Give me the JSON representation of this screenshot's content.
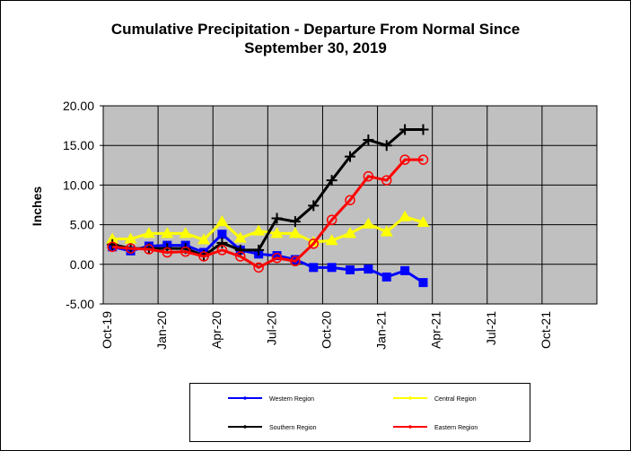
{
  "chart_data": {
    "type": "line",
    "title": "Cumulative Precipitation - Departure From Normal Since",
    "subtitle": "September 30, 2019",
    "ylabel": "Inches",
    "xlabel": "",
    "ylim": [
      -5,
      20
    ],
    "yticks": [
      "20.00",
      "15.00",
      "10.00",
      "5.00",
      "0.00",
      "-5.00"
    ],
    "xticks": [
      "Oct-19",
      "Jan-20",
      "Apr-20",
      "Jul-20",
      "Oct-20",
      "Jan-21",
      "Apr-21",
      "Jul-21",
      "Oct-21"
    ],
    "grid": true,
    "plot_background": "#c0c0c0",
    "legend_position": "bottom",
    "x": [
      "Oct-19",
      "Nov-19",
      "Dec-19",
      "Jan-20",
      "Feb-20",
      "Mar-20",
      "Apr-20",
      "May-20",
      "Jun-20",
      "Jul-20",
      "Aug-20",
      "Sep-20",
      "Oct-20",
      "Nov-20",
      "Dec-20",
      "Jan-21",
      "Feb-21",
      "Mar-21"
    ],
    "series": [
      {
        "name": "Western Region",
        "color": "#0000ff",
        "marker": "square",
        "values": [
          2.2,
          1.7,
          2.3,
          2.4,
          2.4,
          1.5,
          3.8,
          1.8,
          1.3,
          1.1,
          0.6,
          -0.4,
          -0.4,
          -0.7,
          -0.6,
          -1.6,
          -0.8,
          -2.3
        ]
      },
      {
        "name": "Central Region",
        "color": "#ffff00",
        "marker": "triangle",
        "values": [
          3.2,
          3.2,
          3.9,
          3.9,
          3.9,
          3.1,
          5.4,
          3.3,
          4.2,
          3.9,
          3.9,
          2.8,
          3.0,
          3.9,
          5.1,
          4.1,
          6.0,
          5.3
        ]
      },
      {
        "name": "Southern Region",
        "color": "#000000",
        "marker": "plus",
        "values": [
          2.5,
          2.0,
          2.0,
          2.0,
          2.0,
          1.1,
          2.7,
          1.8,
          1.8,
          5.8,
          5.4,
          7.4,
          10.6,
          13.6,
          15.7,
          15.0,
          17.0,
          17.0
        ]
      },
      {
        "name": "Eastern Region",
        "color": "#ff0000",
        "marker": "circle",
        "values": [
          2.2,
          2.0,
          1.9,
          1.5,
          1.6,
          1.0,
          1.8,
          1.0,
          -0.4,
          0.8,
          0.4,
          2.6,
          5.6,
          8.1,
          11.1,
          10.6,
          13.2,
          13.2
        ]
      }
    ]
  }
}
